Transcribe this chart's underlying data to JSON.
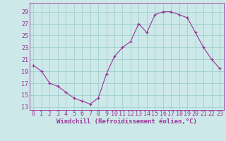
{
  "x": [
    0,
    1,
    2,
    3,
    4,
    5,
    6,
    7,
    8,
    9,
    10,
    11,
    12,
    13,
    14,
    15,
    16,
    17,
    18,
    19,
    20,
    21,
    22,
    23
  ],
  "y": [
    20,
    19,
    17,
    16.5,
    15.5,
    14.5,
    14,
    13.5,
    14.5,
    18.5,
    21.5,
    23,
    24,
    27,
    25.5,
    28.5,
    29,
    29,
    28.5,
    28,
    25.5,
    23,
    21,
    19.5
  ],
  "line_color": "#993399",
  "marker_color": "#993399",
  "bg_color": "#cce8e8",
  "grid_color": "#99cccc",
  "xlabel": "Windchill (Refroidissement éolien,°C)",
  "ylabel_ticks": [
    13,
    15,
    17,
    19,
    21,
    23,
    25,
    27,
    29
  ],
  "ylim": [
    12.5,
    30.5
  ],
  "xlim": [
    -0.5,
    23.5
  ],
  "xtick_labels": [
    "0",
    "1",
    "2",
    "3",
    "4",
    "5",
    "6",
    "7",
    "8",
    "9",
    "10",
    "11",
    "12",
    "13",
    "14",
    "15",
    "16",
    "17",
    "18",
    "19",
    "20",
    "21",
    "22",
    "23"
  ],
  "axis_fontsize": 6.5,
  "tick_fontsize": 6.0
}
